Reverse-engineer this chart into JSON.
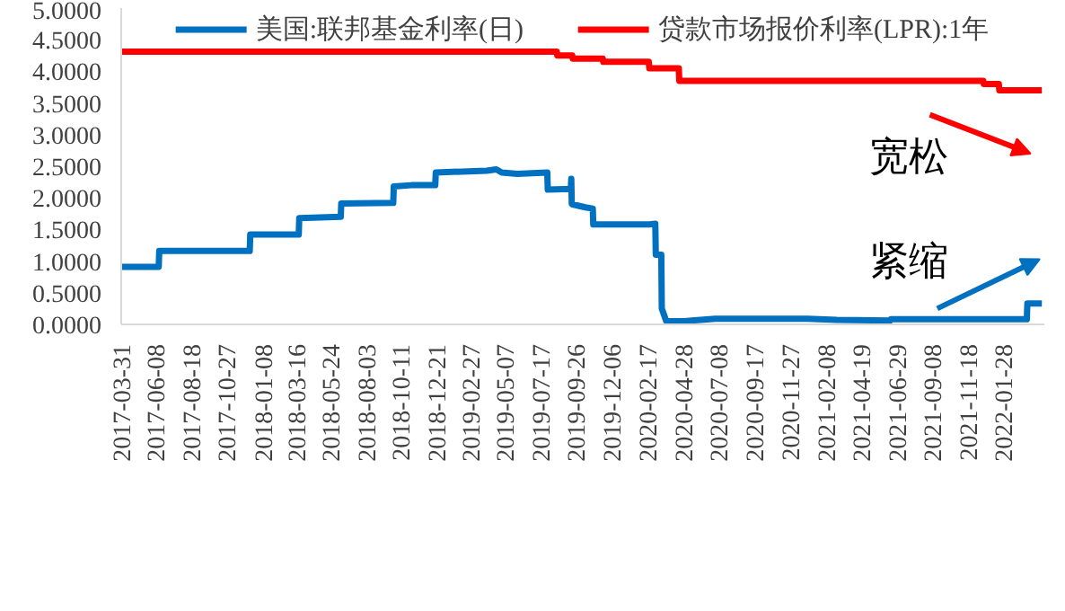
{
  "chart_data": {
    "type": "line",
    "xlim": [
      "2017-03-31",
      "2022-04-20"
    ],
    "xticks": [
      "2017-03-31",
      "2017-06-08",
      "2017-08-18",
      "2017-10-27",
      "2018-01-08",
      "2018-03-16",
      "2018-05-24",
      "2018-08-03",
      "2018-10-11",
      "2018-12-21",
      "2019-02-27",
      "2019-05-07",
      "2019-07-17",
      "2019-09-26",
      "2019-12-06",
      "2020-02-17",
      "2020-04-28",
      "2020-07-08",
      "2020-09-17",
      "2020-11-27",
      "2021-02-08",
      "2021-04-19",
      "2021-06-29",
      "2021-09-08",
      "2021-11-18",
      "2022-01-28"
    ],
    "ylim": [
      0,
      5
    ],
    "yticks": [
      {
        "value": 0,
        "label": "0.0000"
      },
      {
        "value": 0.5,
        "label": "0.5000"
      },
      {
        "value": 1,
        "label": "1.0000"
      },
      {
        "value": 1.5,
        "label": "1.5000"
      },
      {
        "value": 2,
        "label": "2.0000"
      },
      {
        "value": 2.5,
        "label": "2.5000"
      },
      {
        "value": 3,
        "label": "3.0000"
      },
      {
        "value": 3.5,
        "label": "3.5000"
      },
      {
        "value": 4,
        "label": "4.0000"
      },
      {
        "value": 4.5,
        "label": "4.5000"
      },
      {
        "value": 5,
        "label": "5.0000"
      }
    ],
    "grid": false,
    "legend": "top",
    "annotations": [
      "宽松",
      "紧缩"
    ],
    "series": [
      {
        "name": "美国:联邦基金利率(日)",
        "color": "#0070c0",
        "x": [
          "2017-03-31",
          "2017-06-14",
          "2017-06-15",
          "2017-12-13",
          "2017-12-14",
          "2018-03-21",
          "2018-03-22",
          "2018-06-13",
          "2018-06-14",
          "2018-09-26",
          "2018-09-27",
          "2018-11-01",
          "2018-12-19",
          "2018-12-20",
          "2019-04-01",
          "2019-04-20",
          "2019-05-01",
          "2019-06-01",
          "2019-07-31",
          "2019-08-01",
          "2019-09-16",
          "2019-09-17",
          "2019-09-18",
          "2019-10-15",
          "2019-10-30",
          "2019-10-31",
          "2020-02-20",
          "2020-03-03",
          "2020-03-04",
          "2020-03-15",
          "2020-03-16",
          "2020-03-25",
          "2020-04-30",
          "2020-05-15",
          "2020-07-01",
          "2021-01-01",
          "2021-03-01",
          "2021-06-16",
          "2021-06-17",
          "2022-03-16",
          "2022-03-17",
          "2022-04-15"
        ],
        "values": [
          0.91,
          0.91,
          1.16,
          1.16,
          1.42,
          1.42,
          1.68,
          1.7,
          1.91,
          1.92,
          2.18,
          2.2,
          2.2,
          2.4,
          2.43,
          2.45,
          2.4,
          2.38,
          2.4,
          2.13,
          2.14,
          2.3,
          1.9,
          1.85,
          1.83,
          1.58,
          1.58,
          1.59,
          1.1,
          1.1,
          0.25,
          0.05,
          0.05,
          0.06,
          0.09,
          0.09,
          0.07,
          0.06,
          0.08,
          0.08,
          0.33,
          0.33
        ]
      },
      {
        "name": "贷款市场报价利率(LPR):1年",
        "color": "#ff0000",
        "x": [
          "2017-03-31",
          "2019-08-19",
          "2019-08-20",
          "2019-09-19",
          "2019-09-20",
          "2019-11-19",
          "2019-11-20",
          "2020-02-19",
          "2020-02-20",
          "2020-04-19",
          "2020-04-20",
          "2021-12-19",
          "2021-12-20",
          "2022-01-19",
          "2022-01-20",
          "2022-04-15"
        ],
        "values": [
          4.31,
          4.31,
          4.25,
          4.25,
          4.2,
          4.2,
          4.15,
          4.15,
          4.05,
          4.05,
          3.85,
          3.85,
          3.8,
          3.8,
          3.7,
          3.7
        ]
      }
    ]
  }
}
